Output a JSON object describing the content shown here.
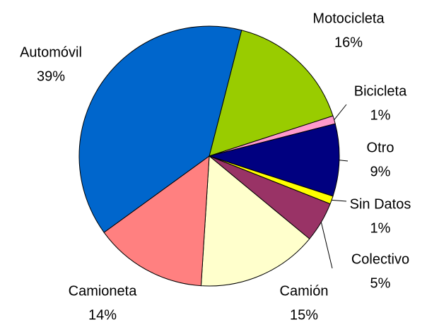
{
  "chart_data": {
    "type": "pie",
    "categories": [
      "Motocicleta",
      "Bicicleta",
      "Otro",
      "Sin Datos",
      "Colectivo",
      "Camión",
      "Camioneta",
      "Automóvil"
    ],
    "values": [
      16,
      1,
      9,
      1,
      5,
      15,
      14,
      39
    ],
    "value_labels": [
      "16%",
      "1%",
      "9%",
      "1%",
      "5%",
      "15%",
      "14%",
      "39%"
    ],
    "colors": [
      "#99cc00",
      "#ff99cc",
      "#000080",
      "#ffff00",
      "#993366",
      "#ffffcc",
      "#ff8080",
      "#0066cc"
    ]
  }
}
